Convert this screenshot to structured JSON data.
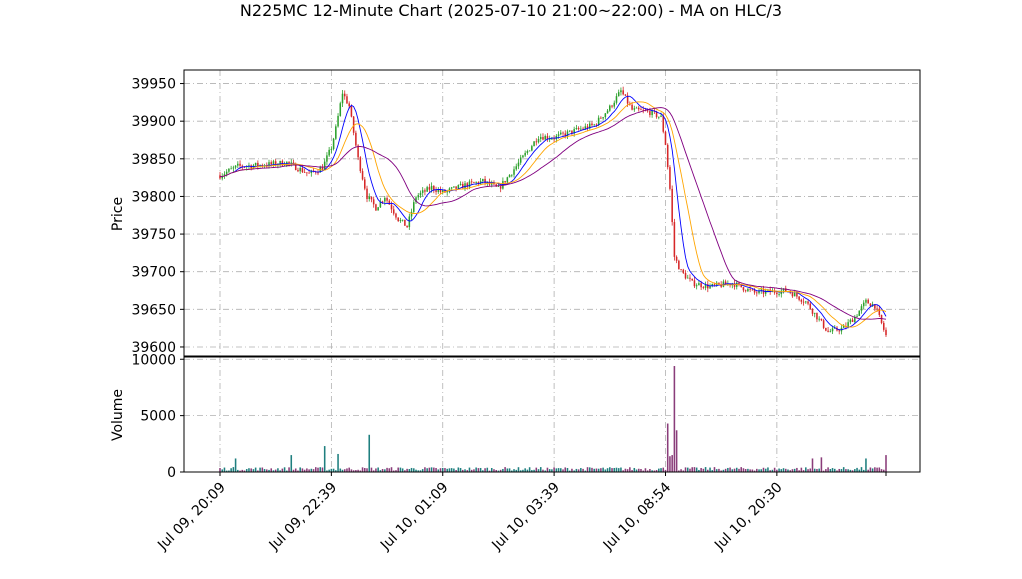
{
  "chart_data": {
    "type": "candlestick",
    "title": "N225MC 12-Minute Chart (2025-07-10 21:00~22:00) - MA on HLC/3",
    "price_panel": {
      "ylabel": "Price",
      "ylim": [
        39588,
        39968
      ],
      "yticks": [
        39600,
        39650,
        39700,
        39750,
        39800,
        39850,
        39900,
        39950
      ],
      "grid": true
    },
    "volume_panel": {
      "ylabel": "Volume",
      "ylim": [
        0,
        10200
      ],
      "yticks": [
        0,
        5000,
        10000
      ],
      "grid": true
    },
    "x_ticks": [
      {
        "index": 0,
        "label": "Jul 09, 20:09"
      },
      {
        "index": 50,
        "label": "Jul 09, 22:39"
      },
      {
        "index": 100,
        "label": "Jul 10, 01:09"
      },
      {
        "index": 150,
        "label": "Jul 10, 03:39"
      },
      {
        "index": 200,
        "label": "Jul 10, 08:54"
      },
      {
        "index": 250,
        "label": "Jul 10, 20:30"
      }
    ],
    "candle_count": 300,
    "price_path_approx": [
      [
        0,
        39828
      ],
      [
        8,
        39840
      ],
      [
        20,
        39842
      ],
      [
        30,
        39845
      ],
      [
        40,
        39830
      ],
      [
        46,
        39838
      ],
      [
        50,
        39865
      ],
      [
        52,
        39890
      ],
      [
        55,
        39938
      ],
      [
        58,
        39920
      ],
      [
        62,
        39850
      ],
      [
        66,
        39800
      ],
      [
        70,
        39785
      ],
      [
        74,
        39800
      ],
      [
        80,
        39770
      ],
      [
        84,
        39760
      ],
      [
        88,
        39800
      ],
      [
        95,
        39812
      ],
      [
        100,
        39805
      ],
      [
        110,
        39815
      ],
      [
        118,
        39820
      ],
      [
        125,
        39810
      ],
      [
        133,
        39840
      ],
      [
        138,
        39860
      ],
      [
        143,
        39880
      ],
      [
        150,
        39878
      ],
      [
        160,
        39888
      ],
      [
        168,
        39895
      ],
      [
        175,
        39918
      ],
      [
        180,
        39940
      ],
      [
        185,
        39915
      ],
      [
        193,
        39912
      ],
      [
        198,
        39905
      ],
      [
        200,
        39870
      ],
      [
        202,
        39810
      ],
      [
        204,
        39720
      ],
      [
        207,
        39700
      ],
      [
        212,
        39685
      ],
      [
        220,
        39680
      ],
      [
        230,
        39685
      ],
      [
        240,
        39672
      ],
      [
        255,
        39675
      ],
      [
        263,
        39660
      ],
      [
        268,
        39640
      ],
      [
        273,
        39620
      ],
      [
        280,
        39625
      ],
      [
        285,
        39640
      ],
      [
        290,
        39660
      ],
      [
        294,
        39655
      ],
      [
        299,
        39615
      ]
    ],
    "volume_spikes_approx": [
      [
        7,
        1200
      ],
      [
        32,
        1500
      ],
      [
        47,
        2300
      ],
      [
        53,
        1600
      ],
      [
        67,
        3300
      ],
      [
        201,
        4300
      ],
      [
        202,
        1400
      ],
      [
        203,
        1500
      ],
      [
        204,
        9400
      ],
      [
        205,
        3700
      ],
      [
        266,
        1200
      ],
      [
        270,
        1300
      ],
      [
        290,
        1200
      ],
      [
        299,
        1500
      ]
    ],
    "series": [
      {
        "color": "#0000ff"
      },
      {
        "color": "#ffa500"
      },
      {
        "color": "#800080"
      }
    ],
    "colors": {
      "up": "#2ca02c",
      "down": "#d62728",
      "grid": "#b0b0b0"
    }
  }
}
